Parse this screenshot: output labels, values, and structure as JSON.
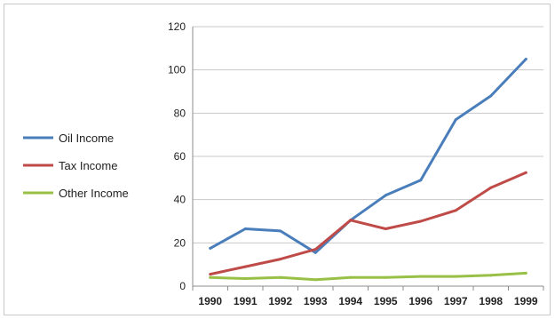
{
  "chart_data": {
    "type": "line",
    "title": "",
    "xlabel": "",
    "ylabel": "",
    "categories": [
      "1990",
      "1991",
      "1992",
      "1993",
      "1994",
      "1995",
      "1996",
      "1997",
      "1998",
      "1999"
    ],
    "ylim": [
      0,
      120
    ],
    "yticks": [
      "0",
      "20",
      "40",
      "60",
      "80",
      "100",
      "120"
    ],
    "grid": true,
    "legend_position": "left",
    "series": [
      {
        "name": "Oil Income",
        "color": "#4a7ebb",
        "values": [
          17.5,
          26.5,
          25.5,
          15.5,
          30.5,
          42,
          49,
          77,
          88,
          105
        ]
      },
      {
        "name": "Tax Income",
        "color": "#be4b48",
        "values": [
          5.5,
          9,
          12.5,
          17,
          30.5,
          26.5,
          30,
          35,
          45.5,
          52.5
        ]
      },
      {
        "name": "Other Income",
        "color": "#98c046",
        "values": [
          4,
          3.5,
          4,
          3,
          4,
          4,
          4.5,
          4.5,
          5,
          6
        ]
      }
    ]
  }
}
